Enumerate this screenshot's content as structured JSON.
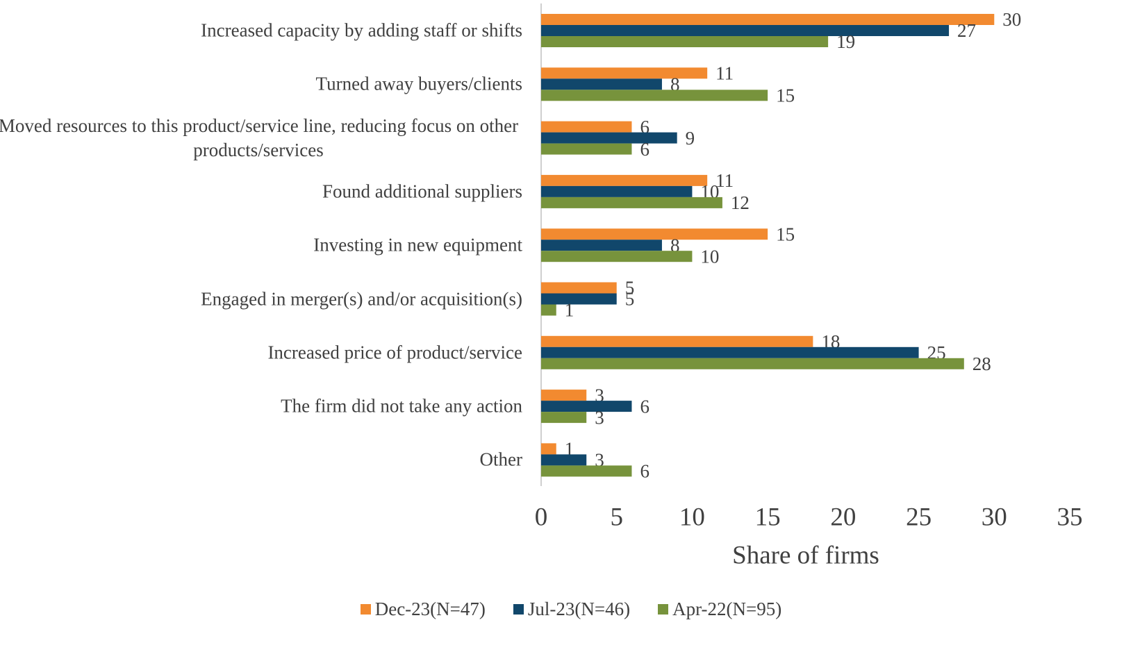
{
  "chart_data": {
    "type": "bar",
    "orientation": "horizontal",
    "x_axis_label": "Share of firms",
    "categories": [
      "Increased capacity by adding staff or shifts",
      "Turned away buyers/clients",
      "Moved resources to this product/service line, reducing focus on other products/services",
      "Found additional suppliers",
      "Investing in new equipment",
      "Engaged in merger(s) and/or acquisition(s)",
      "Increased price of product/service",
      "The firm did not take any action",
      "Other"
    ],
    "series": [
      {
        "name": "Dec-23(N=47)",
        "color": "#f28a30",
        "values": [
          30,
          11,
          6,
          11,
          15,
          5,
          18,
          3,
          1
        ]
      },
      {
        "name": "Jul-23(N=46)",
        "color": "#11476b",
        "values": [
          27,
          8,
          9,
          10,
          8,
          5,
          25,
          6,
          3
        ]
      },
      {
        "name": "Apr-22(N=95)",
        "color": "#77933c",
        "values": [
          19,
          15,
          6,
          12,
          10,
          1,
          28,
          3,
          6
        ]
      }
    ],
    "xlim": [
      0,
      35
    ],
    "xticks": [
      0,
      5,
      10,
      15,
      20,
      25,
      30,
      35
    ],
    "grid": false,
    "legend": "bottom"
  }
}
